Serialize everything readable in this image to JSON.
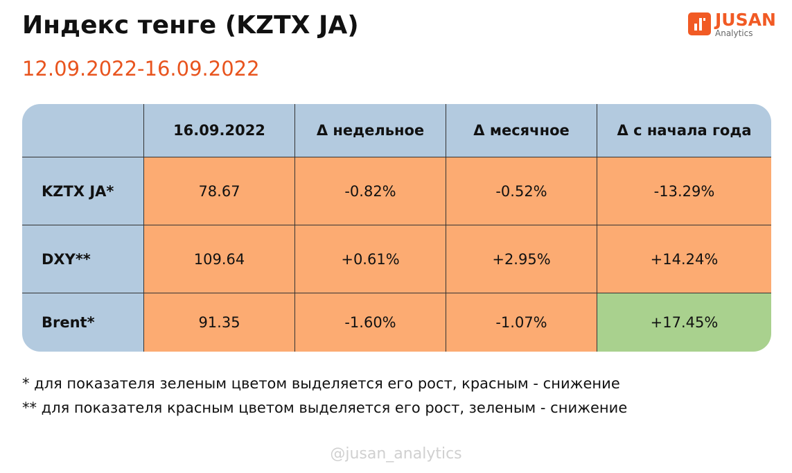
{
  "header": {
    "title": "Индекс тенге (KZTX JA)",
    "subtitle": "12.09.2022-16.09.2022",
    "logo": {
      "name": "JUSAN",
      "tagline": "Analytics"
    }
  },
  "table": {
    "columns": [
      "16.09.2022",
      "Δ недельное",
      "Δ месячное",
      "Δ с начала года"
    ],
    "rows": [
      {
        "label": "KZTX JA*",
        "cells": [
          "78.67",
          "-0.82%",
          "-0.52%",
          "-13.29%"
        ]
      },
      {
        "label": "DXY**",
        "cells": [
          "109.64",
          "+0.61%",
          "+2.95%",
          "+14.24%"
        ]
      },
      {
        "label": "Brent*",
        "cells": [
          "91.35",
          "-1.60%",
          "-1.07%",
          "+17.45%"
        ]
      }
    ]
  },
  "notes": [
    "* для показателя зеленым цветом выделяется его рост, красным - снижение",
    "** для показателя красным цветом выделяется его рост, зеленым - снижение"
  ],
  "footer": "@jusan_analytics"
}
